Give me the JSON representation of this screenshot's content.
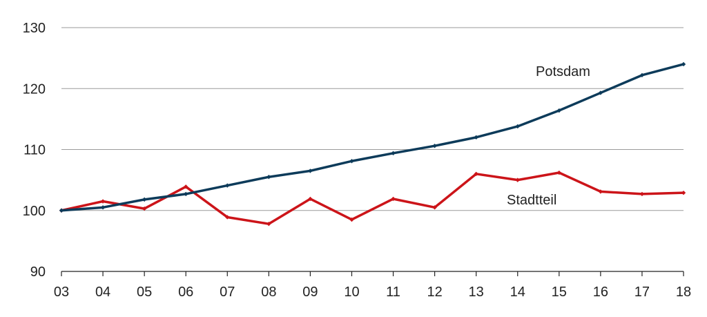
{
  "chart_data": {
    "type": "line",
    "title": "",
    "xlabel": "",
    "ylabel": "",
    "categories": [
      "03",
      "04",
      "05",
      "06",
      "07",
      "08",
      "09",
      "10",
      "11",
      "12",
      "13",
      "14",
      "15",
      "16",
      "17",
      "18"
    ],
    "ylim": [
      90,
      130
    ],
    "yticks": [
      90,
      100,
      110,
      120,
      130
    ],
    "grid": true,
    "legend": "none",
    "series": [
      {
        "name": "Potsdam",
        "color": "#0d3b5a",
        "values": [
          100,
          100.5,
          101.8,
          102.7,
          104.1,
          105.5,
          106.5,
          108.1,
          109.4,
          110.6,
          112.0,
          113.8,
          116.4,
          119.3,
          122.2,
          124.0
        ]
      },
      {
        "name": "Stadtteil",
        "color": "#cc1419",
        "values": [
          100,
          101.5,
          100.3,
          103.9,
          98.9,
          97.8,
          101.9,
          98.5,
          101.9,
          100.5,
          106.0,
          105.0,
          106.2,
          103.1,
          102.7,
          102.9
        ]
      }
    ]
  }
}
